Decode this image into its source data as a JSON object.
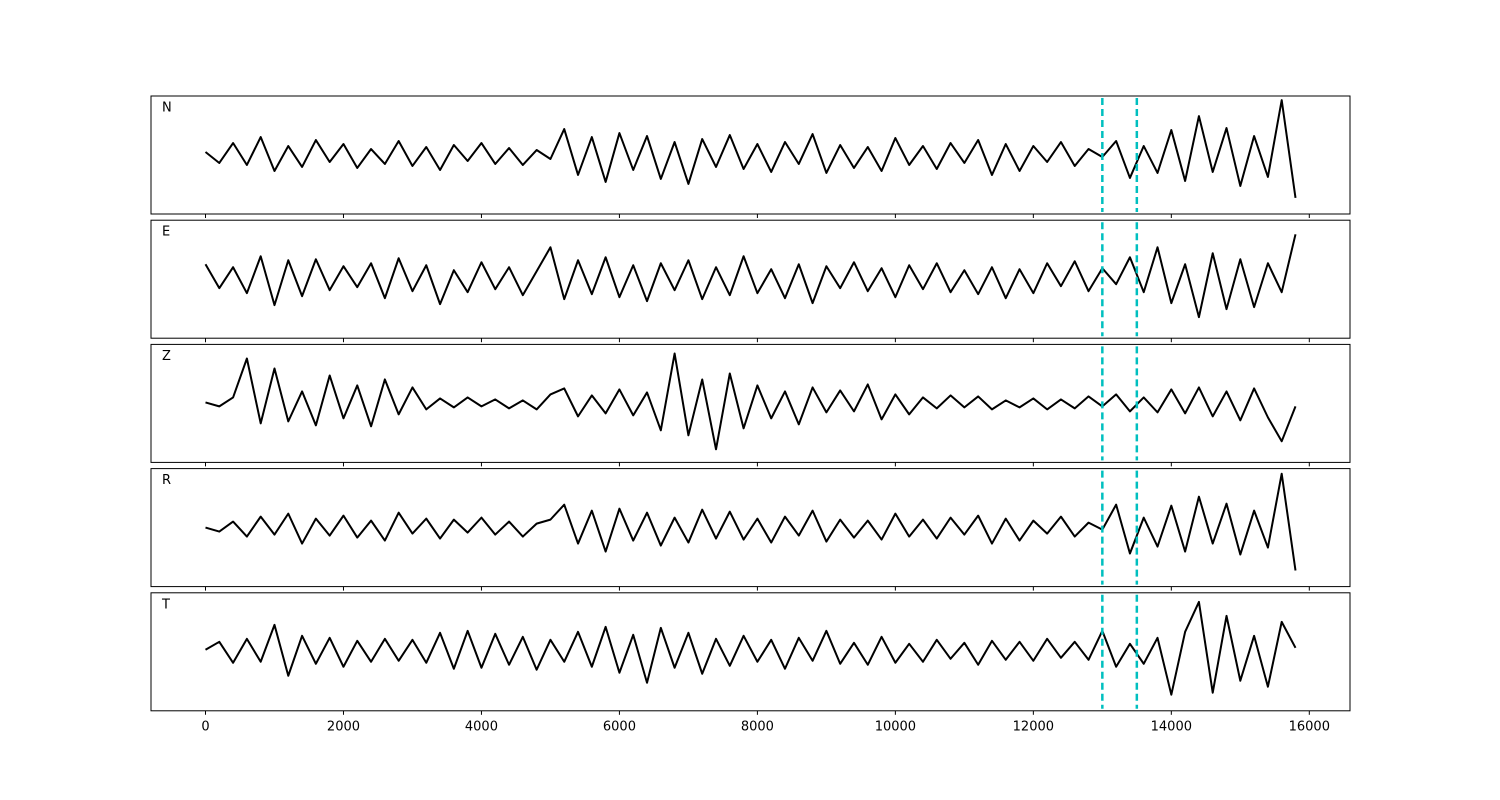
{
  "chart_data": [
    {
      "type": "line",
      "title": "N",
      "color": "#000000",
      "vlines": [
        13000,
        13500
      ],
      "vline_color": "#00bfbf",
      "xlim": [
        -790,
        16590
      ],
      "xticks": [
        0,
        2000,
        4000,
        6000,
        8000,
        10000,
        12000,
        14000,
        16000
      ],
      "x": [
        0,
        200,
        400,
        600,
        800,
        1000,
        1200,
        1400,
        1600,
        1800,
        2000,
        2200,
        2400,
        2600,
        2800,
        3000,
        3200,
        3400,
        3600,
        3800,
        4000,
        4200,
        4400,
        4600,
        4800,
        5000,
        5200,
        5400,
        5600,
        5800,
        6000,
        6200,
        6400,
        6600,
        6800,
        7000,
        7200,
        7400,
        7600,
        7800,
        8000,
        8200,
        8400,
        8600,
        8800,
        9000,
        9200,
        9400,
        9600,
        9800,
        10000,
        10200,
        10400,
        10600,
        10800,
        11000,
        11200,
        11400,
        11600,
        11800,
        12000,
        12200,
        12400,
        12600,
        12800,
        13000,
        13200,
        13400,
        13600,
        13800,
        14000,
        14200,
        14400,
        14600,
        14800,
        15000,
        15200,
        15400,
        15600,
        15800
      ],
      "values": [
        0.3,
        -0.8,
        1.2,
        -1.0,
        1.8,
        -1.6,
        0.9,
        -1.2,
        1.5,
        -0.7,
        1.1,
        -1.3,
        0.6,
        -0.9,
        1.4,
        -1.1,
        0.8,
        -1.5,
        1.0,
        -0.6,
        1.2,
        -0.9,
        0.7,
        -1.0,
        0.5,
        -0.4,
        2.6,
        -2.0,
        1.8,
        -2.7,
        2.2,
        -1.5,
        1.9,
        -2.4,
        1.3,
        -2.9,
        1.6,
        -1.2,
        2.0,
        -1.4,
        1.1,
        -1.7,
        1.3,
        -0.9,
        2.1,
        -1.8,
        1.0,
        -1.3,
        0.8,
        -1.6,
        1.7,
        -1.0,
        0.9,
        -1.4,
        1.2,
        -0.8,
        1.5,
        -2.0,
        1.1,
        -1.6,
        0.9,
        -0.7,
        1.3,
        -1.1,
        0.6,
        -0.2,
        1.4,
        -2.3,
        0.9,
        -1.8,
        2.5,
        -2.6,
        3.9,
        -1.7,
        2.7,
        -3.1,
        1.9,
        -2.2,
        5.5,
        -4.3
      ]
    },
    {
      "type": "line",
      "title": "E",
      "color": "#000000",
      "vlines": [
        13000,
        13500
      ],
      "vline_color": "#00bfbf",
      "xlim": [
        -790,
        16590
      ],
      "xticks": [
        0,
        2000,
        4000,
        6000,
        8000,
        10000,
        12000,
        14000,
        16000
      ],
      "x": [
        0,
        200,
        400,
        600,
        800,
        1000,
        1200,
        1400,
        1600,
        1800,
        2000,
        2200,
        2400,
        2600,
        2800,
        3000,
        3200,
        3400,
        3600,
        3800,
        4000,
        4200,
        4400,
        4600,
        4800,
        5000,
        5200,
        5400,
        5600,
        5800,
        6000,
        6200,
        6400,
        6600,
        6800,
        7000,
        7200,
        7400,
        7600,
        7800,
        8000,
        8200,
        8400,
        8600,
        8800,
        9000,
        9200,
        9400,
        9600,
        9800,
        10000,
        10200,
        10400,
        10600,
        10800,
        11000,
        11200,
        11400,
        11600,
        11800,
        12000,
        12200,
        12400,
        12600,
        12800,
        13000,
        13200,
        13400,
        13600,
        13800,
        14000,
        14200,
        14400,
        14600,
        14800,
        15000,
        15200,
        15400,
        15600,
        15800
      ],
      "values": [
        1.5,
        -0.9,
        1.2,
        -1.4,
        2.3,
        -2.6,
        1.9,
        -1.7,
        2.0,
        -1.1,
        1.3,
        -0.8,
        1.6,
        -1.9,
        2.1,
        -1.2,
        1.4,
        -2.5,
        0.9,
        -1.3,
        1.7,
        -1.0,
        1.2,
        -1.6,
        0.8,
        3.2,
        -2.0,
        1.9,
        -1.5,
        2.2,
        -1.8,
        1.4,
        -2.2,
        1.6,
        -1.1,
        1.9,
        -2.0,
        1.2,
        -1.6,
        2.3,
        -1.4,
        1.0,
        -1.9,
        1.5,
        -2.4,
        1.3,
        -0.9,
        1.7,
        -1.2,
        1.1,
        -1.8,
        1.4,
        -1.0,
        1.6,
        -1.3,
        0.9,
        -1.5,
        1.2,
        -1.9,
        1.0,
        -1.4,
        1.6,
        -0.7,
        1.8,
        -1.2,
        1.1,
        -0.5,
        2.2,
        -1.3,
        3.2,
        -2.4,
        1.5,
        -3.8,
        2.6,
        -3.0,
        2.0,
        -2.8,
        1.6,
        -1.3,
        4.5
      ]
    },
    {
      "type": "line",
      "title": "Z",
      "color": "#000000",
      "vlines": [
        13000,
        13500
      ],
      "vline_color": "#00bfbf",
      "xlim": [
        -790,
        16590
      ],
      "xticks": [
        0,
        2000,
        4000,
        6000,
        8000,
        10000,
        12000,
        14000,
        16000
      ],
      "x": [
        0,
        200,
        400,
        600,
        800,
        1000,
        1200,
        1400,
        1600,
        1800,
        2000,
        2200,
        2400,
        2600,
        2800,
        3000,
        3200,
        3400,
        3600,
        3800,
        4000,
        4200,
        4400,
        4600,
        4800,
        5000,
        5200,
        5400,
        5600,
        5800,
        6000,
        6200,
        6400,
        6600,
        6800,
        7000,
        7200,
        7400,
        7600,
        7800,
        8000,
        8200,
        8400,
        8600,
        8800,
        9000,
        9200,
        9400,
        9600,
        9800,
        10000,
        10200,
        10400,
        10600,
        10800,
        11000,
        11200,
        11400,
        11600,
        11800,
        12000,
        12200,
        12400,
        12600,
        12800,
        13000,
        13200,
        13400,
        13600,
        13800,
        14000,
        14200,
        14400,
        14600,
        14800,
        15000,
        15200,
        15400,
        15600,
        15800
      ],
      "values": [
        0.1,
        -0.3,
        0.6,
        4.5,
        -2.0,
        3.5,
        -1.8,
        1.2,
        -2.2,
        2.8,
        -1.5,
        1.8,
        -2.3,
        2.4,
        -1.1,
        1.6,
        -0.6,
        0.5,
        -0.4,
        0.6,
        -0.3,
        0.4,
        -0.5,
        0.3,
        -0.6,
        0.9,
        1.5,
        -1.3,
        0.8,
        -1.0,
        1.4,
        -1.2,
        1.1,
        -2.7,
        5.0,
        -3.2,
        2.4,
        -4.6,
        3.0,
        -2.5,
        1.8,
        -1.5,
        1.2,
        -2.1,
        1.6,
        -0.9,
        1.3,
        -0.8,
        1.9,
        -1.6,
        0.9,
        -1.1,
        0.6,
        -0.5,
        0.8,
        -0.4,
        0.7,
        -0.6,
        0.3,
        -0.4,
        0.5,
        -0.6,
        0.4,
        -0.5,
        0.7,
        -0.3,
        0.9,
        -0.8,
        0.6,
        -0.9,
        1.4,
        -1.0,
        1.6,
        -1.3,
        1.2,
        -1.7,
        1.5,
        -1.4,
        -3.8,
        -0.3
      ]
    },
    {
      "type": "line",
      "title": "R",
      "color": "#000000",
      "vlines": [
        13000,
        13500
      ],
      "vline_color": "#00bfbf",
      "xlim": [
        -790,
        16590
      ],
      "xticks": [
        0,
        2000,
        4000,
        6000,
        8000,
        10000,
        12000,
        14000,
        16000
      ],
      "x": [
        0,
        200,
        400,
        600,
        800,
        1000,
        1200,
        1400,
        1600,
        1800,
        2000,
        2200,
        2400,
        2600,
        2800,
        3000,
        3200,
        3400,
        3600,
        3800,
        4000,
        4200,
        4400,
        4600,
        4800,
        5000,
        5200,
        5400,
        5600,
        5800,
        6000,
        6200,
        6400,
        6600,
        6800,
        7000,
        7200,
        7400,
        7600,
        7800,
        8000,
        8200,
        8400,
        8600,
        8800,
        9000,
        9200,
        9400,
        9600,
        9800,
        10000,
        10200,
        10400,
        10600,
        10800,
        11000,
        11200,
        11400,
        11600,
        11800,
        12000,
        12200,
        12400,
        12600,
        12800,
        13000,
        13200,
        13400,
        13600,
        13800,
        14000,
        14200,
        14400,
        14600,
        14800,
        15000,
        15200,
        15400,
        15600,
        15800
      ],
      "values": [
        0.0,
        -0.4,
        0.6,
        -0.9,
        1.1,
        -0.7,
        1.4,
        -1.6,
        0.9,
        -0.8,
        1.2,
        -1.0,
        0.7,
        -1.3,
        1.5,
        -0.6,
        0.9,
        -1.1,
        0.8,
        -0.5,
        1.0,
        -0.7,
        0.6,
        -0.9,
        0.4,
        0.8,
        2.3,
        -1.6,
        1.7,
        -2.4,
        1.9,
        -1.3,
        1.5,
        -1.8,
        1.0,
        -1.5,
        1.8,
        -1.1,
        1.6,
        -1.2,
        0.9,
        -1.5,
        1.1,
        -0.8,
        1.7,
        -1.4,
        0.8,
        -1.0,
        0.7,
        -1.2,
        1.4,
        -0.9,
        0.8,
        -1.1,
        1.0,
        -0.7,
        1.2,
        -1.6,
        0.9,
        -1.3,
        0.7,
        -0.6,
        1.1,
        -0.9,
        0.5,
        -0.2,
        2.3,
        -2.6,
        1.0,
        -1.9,
        2.2,
        -2.4,
        3.1,
        -1.6,
        2.4,
        -2.7,
        1.7,
        -2.0,
        5.4,
        -4.3
      ]
    },
    {
      "type": "line",
      "title": "T",
      "color": "#000000",
      "vlines": [
        13000,
        13500
      ],
      "vline_color": "#00bfbf",
      "xlim": [
        -790,
        16590
      ],
      "xticks": [
        0,
        2000,
        4000,
        6000,
        8000,
        10000,
        12000,
        14000,
        16000
      ],
      "x": [
        0,
        200,
        400,
        600,
        800,
        1000,
        1200,
        1400,
        1600,
        1800,
        2000,
        2200,
        2400,
        2600,
        2800,
        3000,
        3200,
        3400,
        3600,
        3800,
        4000,
        4200,
        4400,
        4600,
        4800,
        5000,
        5200,
        5400,
        5600,
        5800,
        6000,
        6200,
        6400,
        6600,
        6800,
        7000,
        7200,
        7400,
        7600,
        7800,
        8000,
        8200,
        8400,
        8600,
        8800,
        9000,
        9200,
        9400,
        9600,
        9800,
        10000,
        10200,
        10400,
        10600,
        10800,
        11000,
        11200,
        11400,
        11600,
        11800,
        12000,
        12200,
        12400,
        12600,
        12800,
        13000,
        13200,
        13400,
        13600,
        13800,
        14000,
        14200,
        14400,
        14600,
        14800,
        15000,
        15200,
        15400,
        15600,
        15800
      ],
      "values": [
        0.2,
        1.0,
        -1.1,
        1.3,
        -1.0,
        2.7,
        -2.4,
        1.6,
        -1.2,
        1.4,
        -1.5,
        1.1,
        -1.0,
        1.3,
        -0.9,
        1.2,
        -1.1,
        1.9,
        -1.7,
        2.1,
        -1.6,
        1.8,
        -1.3,
        1.5,
        -1.8,
        1.2,
        -1.0,
        2.0,
        -1.5,
        2.5,
        -2.1,
        1.7,
        -3.1,
        2.4,
        -1.6,
        1.9,
        -2.2,
        1.3,
        -1.4,
        1.6,
        -1.0,
        1.2,
        -1.7,
        1.4,
        -0.9,
        2.1,
        -1.2,
        0.9,
        -1.3,
        1.5,
        -1.1,
        0.8,
        -1.0,
        1.2,
        -0.7,
        0.9,
        -1.3,
        1.1,
        -0.8,
        1.0,
        -0.9,
        1.3,
        -0.6,
        1.0,
        -0.8,
        2.1,
        -1.5,
        0.8,
        -1.2,
        1.4,
        -4.3,
        2.0,
        5.0,
        -4.1,
        3.6,
        -2.9,
        1.6,
        -3.5,
        3.0,
        0.4
      ]
    }
  ]
}
